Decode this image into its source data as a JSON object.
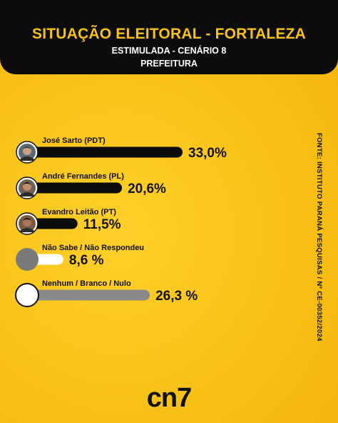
{
  "header": {
    "title": "SITUAÇÃO ELEITORAL - FORTALEZA",
    "subtitle": "ESTIMULADA - CENÁRIO 8",
    "subtitle2": "PREFEITURA"
  },
  "source": "FONTE: INSTITUTO PARANÁ PESQUISAS / Nº CE-00352/2024",
  "logo": "cn7",
  "colors": {
    "background": "#f9c21b",
    "header": "#0c0c0c",
    "bar_candidate": "#0c0c0c",
    "bar_nao_sabe": "#ffffff",
    "bar_nenhum": "#8a8a8a"
  },
  "chart_data": {
    "type": "bar",
    "orientation": "horizontal",
    "categories": [
      "José Sarto (PDT)",
      "André Fernandes (PL)",
      "Evandro Leitão (PT)",
      "Não Sabe / Não Respondeu",
      "Nenhum / Branco / Nulo"
    ],
    "values": [
      33.0,
      20.6,
      11.5,
      8.6,
      26.3
    ],
    "value_labels": [
      "33,0%",
      "20,6%",
      "11,5%",
      "8,6 %",
      "26,3 %"
    ],
    "bar_colors": [
      "#0c0c0c",
      "#0c0c0c",
      "#0c0c0c",
      "#ffffff",
      "#8a8a8a"
    ],
    "avatar_kind": [
      "photo",
      "photo",
      "photo",
      "gray-circle",
      "white-circle"
    ],
    "title": "SITUAÇÃO ELEITORAL - FORTALEZA",
    "xlabel": "",
    "ylabel": "",
    "xlim": [
      0,
      33.0
    ],
    "grid": false
  }
}
